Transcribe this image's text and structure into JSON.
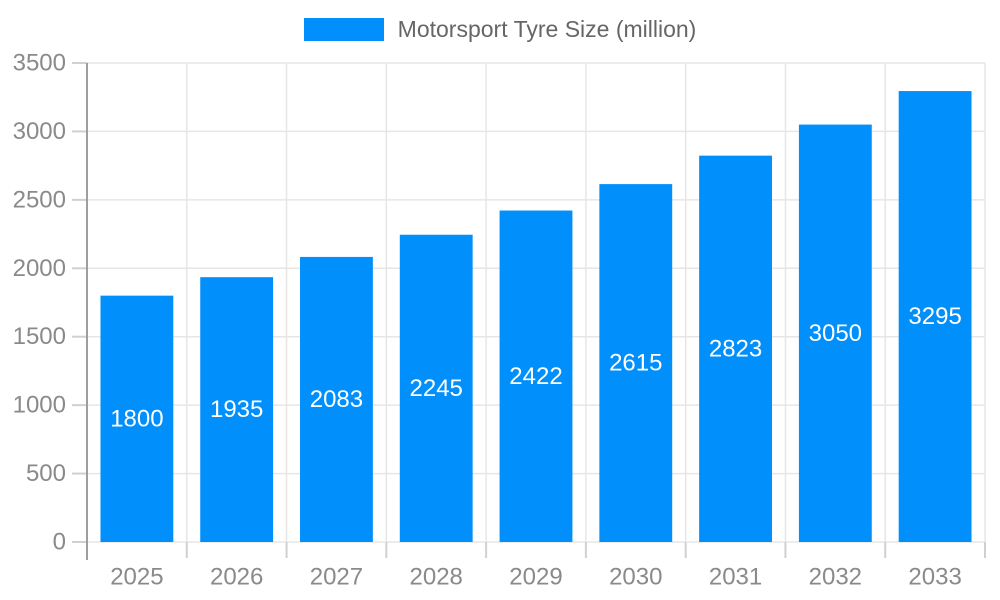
{
  "chart_data": {
    "type": "bar",
    "title": "Motorsport Tyre Size (million)",
    "categories": [
      "2025",
      "2026",
      "2027",
      "2028",
      "2029",
      "2030",
      "2031",
      "2032",
      "2033"
    ],
    "series": [
      {
        "name": "Motorsport Tyre Size (million)",
        "values": [
          1800,
          1935,
          2083,
          2245,
          2422,
          2615,
          2823,
          3050,
          3295
        ]
      }
    ],
    "xlabel": "",
    "ylabel": "",
    "ylim": [
      0,
      3500
    ],
    "y_ticks": [
      0,
      500,
      1000,
      1500,
      2000,
      2500,
      3000,
      3500
    ],
    "y_tick_labels": [
      "0",
      "500",
      "1000",
      "1500",
      "2000",
      "2500",
      "3000",
      "3500"
    ],
    "grid": true,
    "legend_position": "top",
    "data_labels_visible": true,
    "colors": {
      "bar": "#008FFB",
      "data_label": "#ffffff",
      "axis_label": "#8a8a8a",
      "legend_text": "#666666",
      "gridline": "#e6e6e6",
      "tick": "#d0d0d0",
      "axis_line": "#9e9e9e",
      "background": "#ffffff"
    }
  }
}
